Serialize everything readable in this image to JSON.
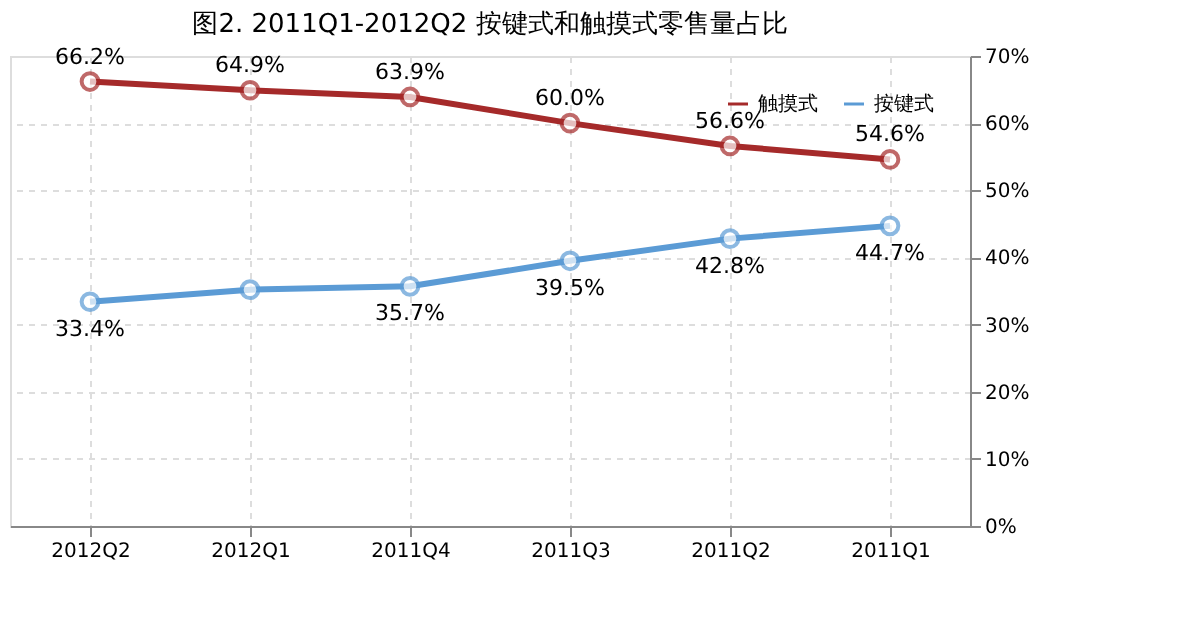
{
  "chart_data": {
    "type": "line",
    "title": "图2. 2011Q1-2012Q2 按键式和触摸式零售量占比",
    "categories": [
      "2012Q2",
      "2012Q1",
      "2011Q4",
      "2011Q3",
      "2011Q2",
      "2011Q1"
    ],
    "series": [
      {
        "name": "触摸式",
        "color": "#a52a2a",
        "values": [
          66.2,
          64.9,
          63.9,
          60.0,
          56.6,
          54.6
        ],
        "value_labels": [
          "66.2%",
          "64.9%",
          "63.9%",
          "60.0%",
          "56.6%",
          "54.6%"
        ]
      },
      {
        "name": "按键式",
        "color": "#5b9bd5",
        "values": [
          33.4,
          35.2,
          35.7,
          39.5,
          42.8,
          44.7
        ],
        "value_labels": [
          "33.4%",
          null,
          "35.7%",
          "39.5%",
          "42.8%",
          "44.7%"
        ]
      }
    ],
    "ylim": [
      0,
      70
    ],
    "yticks": [
      {
        "value": 0,
        "label": "0%"
      },
      {
        "value": 10,
        "label": "10%"
      },
      {
        "value": 20,
        "label": "20%"
      },
      {
        "value": 30,
        "label": "30%"
      },
      {
        "value": 40,
        "label": "40%"
      },
      {
        "value": 50,
        "label": "50%"
      },
      {
        "value": 60,
        "label": "60%"
      },
      {
        "value": 70,
        "label": "70%"
      }
    ],
    "grid": true,
    "legend": "top right",
    "marker": "circle",
    "line_style": "solid"
  }
}
